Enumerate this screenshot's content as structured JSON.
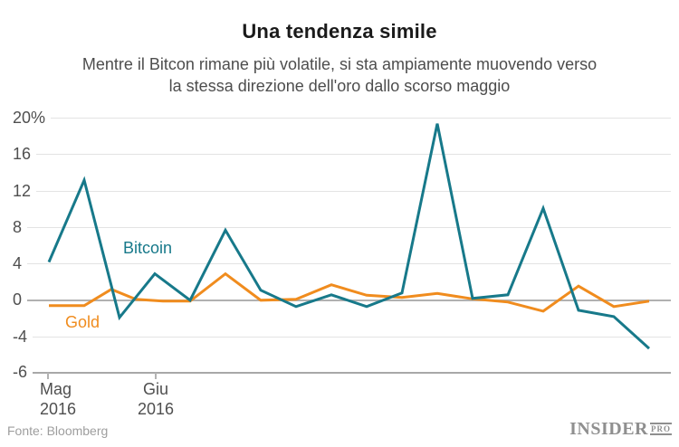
{
  "chart": {
    "title": "Una tendenza simile",
    "subtitle_line1": "Mentre il Bitcon rimane più volatile, si sta ampiamente muovendo verso",
    "subtitle_line2": "la stessa direzione dell'oro dallo scorso maggio"
  },
  "chart_data": {
    "type": "line",
    "title": "Una tendenza simile",
    "subtitle": "Mentre il Bitcon rimane più volatile, si sta ampiamente muovendo verso la stessa direzione dell'oro dallo scorso maggio",
    "unit": "percent change (%)",
    "ylim": [
      -6,
      20
    ],
    "grid": "horizontal gridlines only, zero line emphasized",
    "legend": "inline colored labels next to lines",
    "y_ticks": [
      "20%",
      "16",
      "12",
      "8",
      "4",
      "0",
      "-4",
      "-6"
    ],
    "x_ticks": [
      {
        "line1": "Mag",
        "line2": "2016"
      },
      {
        "line1": "Giu",
        "line2": "2016"
      }
    ],
    "x_units": "pixel position along time axis (per-point dates not labeled in chart)",
    "series": [
      {
        "name": "Gold",
        "color": "#f08c1e",
        "points": [
          [
            54,
            -0.6
          ],
          [
            93,
            -0.6
          ],
          [
            123,
            1.2
          ],
          [
            150,
            0.1
          ],
          [
            180,
            -0.1
          ],
          [
            210,
            -0.1
          ],
          [
            249,
            2.9
          ],
          [
            288,
            0.0
          ],
          [
            327,
            0.1
          ],
          [
            366,
            1.7
          ],
          [
            405,
            0.55
          ],
          [
            444,
            0.3
          ],
          [
            483,
            0.75
          ],
          [
            522,
            0.15
          ],
          [
            561,
            -0.2
          ],
          [
            600,
            -1.2
          ],
          [
            639,
            1.55
          ],
          [
            678,
            -0.7
          ],
          [
            717,
            -0.1
          ]
        ]
      },
      {
        "name": "Bitcoin",
        "color": "#17798a",
        "points": [
          [
            54,
            4.2
          ],
          [
            93,
            13.2
          ],
          [
            132,
            -1.9
          ],
          [
            171,
            2.9
          ],
          [
            210,
            0.0
          ],
          [
            249,
            7.7
          ],
          [
            288,
            1.1
          ],
          [
            327,
            -0.7
          ],
          [
            366,
            0.6
          ],
          [
            405,
            -0.7
          ],
          [
            444,
            0.8
          ],
          [
            483,
            19.4
          ],
          [
            522,
            0.2
          ],
          [
            561,
            0.6
          ],
          [
            600,
            10.1
          ],
          [
            639,
            -1.1
          ],
          [
            678,
            -1.8
          ],
          [
            717,
            -5.3
          ]
        ]
      }
    ]
  },
  "footer": {
    "source": "Fonte: Bloomberg",
    "logo_main": "INSIDER",
    "logo_sub": "PRO"
  }
}
